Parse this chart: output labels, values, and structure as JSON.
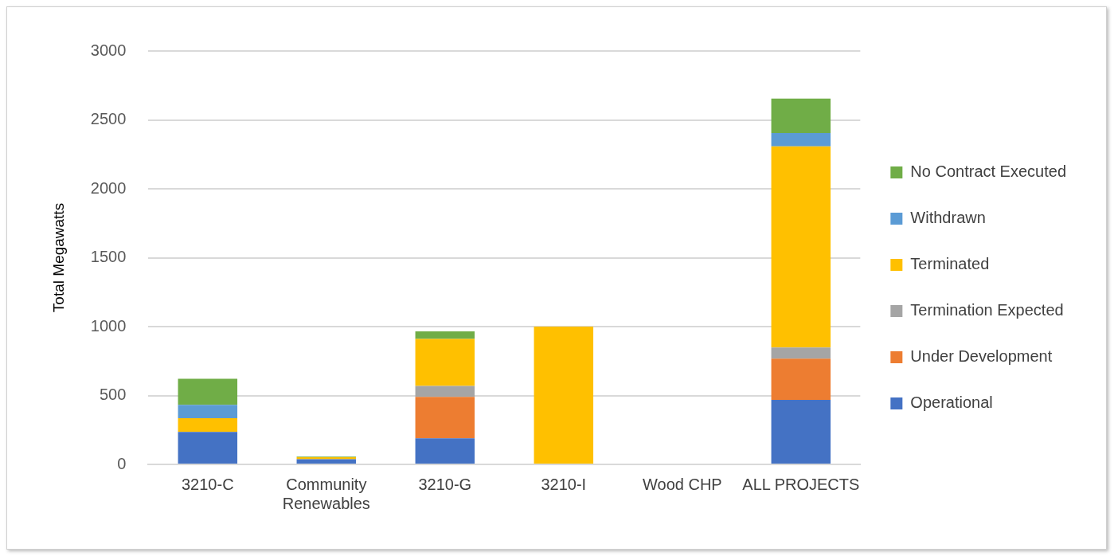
{
  "chart_data": {
    "type": "bar",
    "stacked": true,
    "ylabel": "Total Megawatts",
    "categories": [
      "3210-C",
      "Community Renewables",
      "3210-G",
      "3210-I",
      "Wood CHP",
      "ALL PROJECTS"
    ],
    "series": [
      {
        "name": "Operational",
        "color": "#4472c4",
        "values": [
          235,
          38,
          190,
          0,
          0,
          468
        ]
      },
      {
        "name": "Under Development",
        "color": "#ed7d31",
        "values": [
          0,
          0,
          300,
          0,
          0,
          300
        ]
      },
      {
        "name": "Termination Expected",
        "color": "#a5a5a5",
        "values": [
          0,
          0,
          80,
          0,
          0,
          80
        ]
      },
      {
        "name": "Terminated",
        "color": "#ffc000",
        "values": [
          100,
          14,
          340,
          1000,
          0,
          1460
        ]
      },
      {
        "name": "Withdrawn",
        "color": "#5b9bd5",
        "values": [
          97,
          0,
          0,
          0,
          0,
          97
        ]
      },
      {
        "name": "No Contract Executed",
        "color": "#70ad47",
        "values": [
          190,
          4,
          55,
          0,
          0,
          250
        ]
      }
    ],
    "ylim": [
      0,
      3000
    ],
    "yticks": [
      0,
      500,
      1000,
      1500,
      2000,
      2500,
      3000
    ],
    "grid": "y",
    "legend": "right"
  }
}
